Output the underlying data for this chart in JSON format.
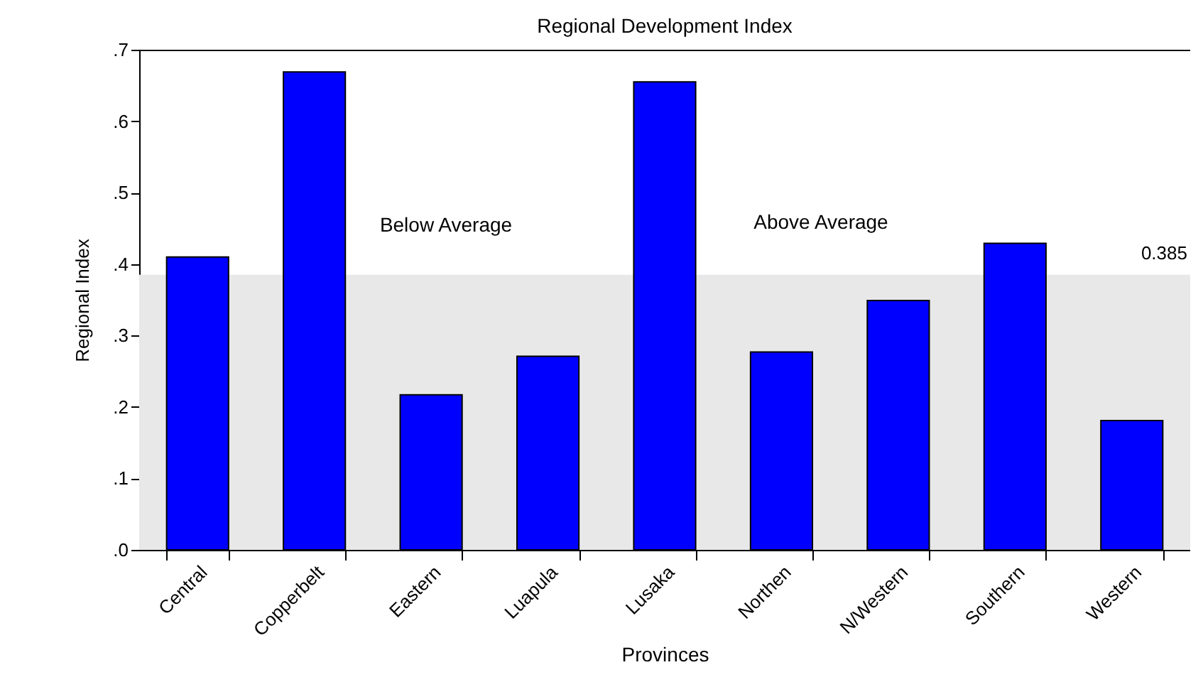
{
  "chart_data": {
    "type": "bar",
    "title": "Regional Development Index",
    "xlabel": "Provinces",
    "ylabel": "Regional Index",
    "categories": [
      "Central",
      "Copperbelt",
      "Eastern",
      "Luapula",
      "Lusaka",
      "Northen",
      "N/Western",
      "Southern",
      "Western"
    ],
    "values": [
      0.41,
      0.669,
      0.217,
      0.271,
      0.655,
      0.277,
      0.349,
      0.429,
      0.181
    ],
    "color": "#0000ff",
    "ylim": [
      0,
      0.7
    ],
    "yticks": [
      {
        "value": 0,
        "label": ".0"
      },
      {
        "value": 0.1,
        "label": ".1"
      },
      {
        "value": 0.2,
        "label": ".2"
      },
      {
        "value": 0.3,
        "label": ".3"
      },
      {
        "value": 0.4,
        "label": ".4"
      },
      {
        "value": 0.5,
        "label": ".5"
      },
      {
        "value": 0.6,
        "label": ".6"
      },
      {
        "value": 0.7,
        "label": ".7"
      }
    ],
    "bands": [
      {
        "axis": "y",
        "from": 0,
        "to": 0.385,
        "label": "0.385",
        "color": "#e8e8e8"
      }
    ],
    "annotations": [
      "Below Average",
      "Above Average"
    ],
    "grid": false
  }
}
